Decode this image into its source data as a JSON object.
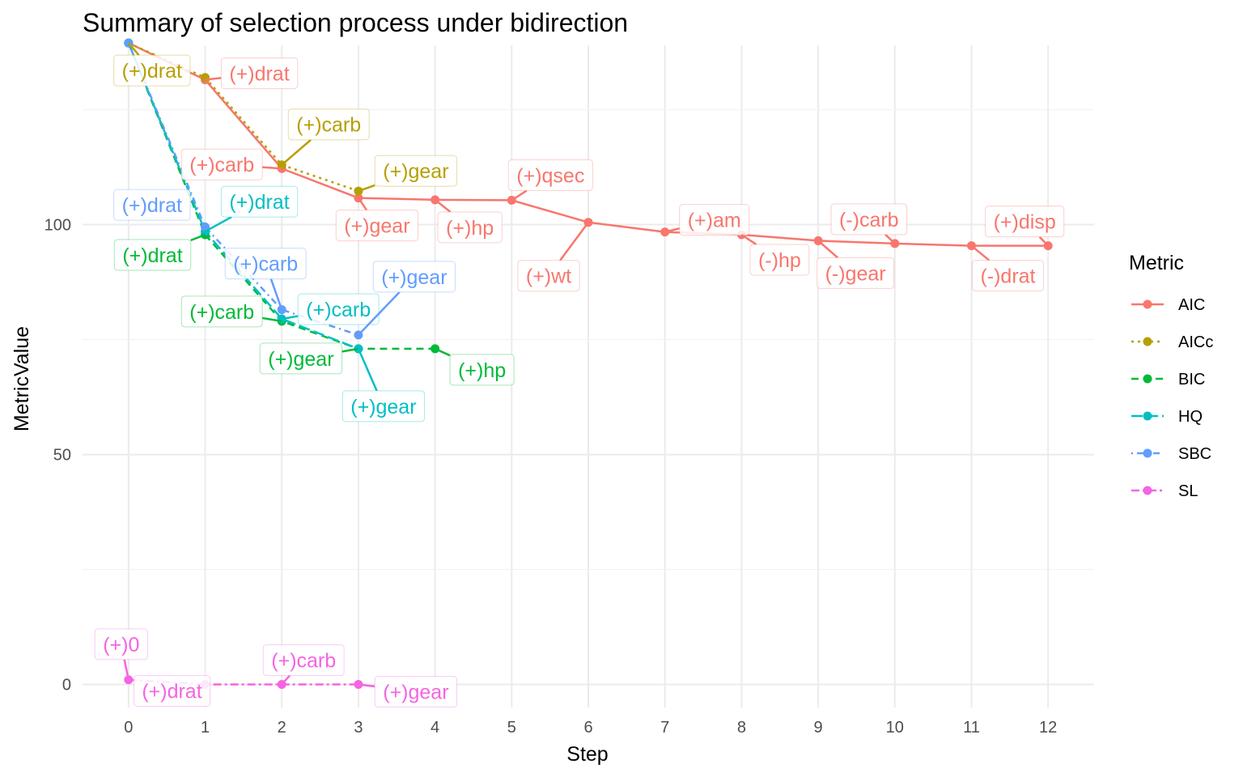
{
  "chart_data": {
    "type": "line",
    "title": "Summary of selection process under bidirection",
    "xlabel": "Step",
    "ylabel": "MetricValue",
    "x_ticks": [
      0,
      1,
      2,
      3,
      4,
      5,
      6,
      7,
      8,
      9,
      10,
      11,
      12
    ],
    "y_ticks": [
      0,
      50,
      100
    ],
    "xlim": [
      -0.6,
      12.6
    ],
    "ylim": [
      -5,
      139
    ],
    "grid": true,
    "legend_title": "Metric",
    "legend_position": "right",
    "series": [
      {
        "name": "AIC",
        "color": "#F8766D",
        "dash": "solid",
        "x": [
          0,
          1,
          2,
          3,
          4,
          5,
          6,
          7,
          8,
          9,
          10,
          11,
          12
        ],
        "y": [
          139.5,
          131.5,
          112.2,
          105.8,
          105.4,
          105.3,
          100.5,
          98.4,
          97.8,
          96.5,
          95.9,
          95.4,
          95.4
        ],
        "labels": [
          "",
          "(+)drat",
          "(+)carb",
          "(+)gear",
          "(+)hp",
          "(+)qsec",
          "(+)wt",
          "(+)am",
          "(-)hp",
          "(-)gear",
          "(-)carb",
          "(-)drat",
          "(+)disp"
        ]
      },
      {
        "name": "AICc",
        "color": "#B79F00",
        "dash": "dotted",
        "x": [
          0,
          1,
          2,
          3
        ],
        "y": [
          139.5,
          132.0,
          113.0,
          107.3
        ],
        "labels": [
          "(+)drat",
          "",
          "(+)carb",
          "(+)gear"
        ]
      },
      {
        "name": "BIC",
        "color": "#00BA38",
        "dash": "dashed",
        "x": [
          0,
          1,
          2,
          3,
          4
        ],
        "y": [
          139.5,
          97.8,
          79.0,
          73.0,
          73.0
        ],
        "labels": [
          "",
          "(+)drat",
          "(+)carb",
          "(+)gear",
          "(+)hp"
        ]
      },
      {
        "name": "HQ",
        "color": "#00BFC4",
        "dash": "longdash",
        "x": [
          0,
          1,
          2,
          3
        ],
        "y": [
          139.5,
          98.5,
          79.5,
          73.0
        ],
        "labels": [
          "",
          "(+)drat",
          "(+)carb",
          "(+)gear"
        ]
      },
      {
        "name": "SBC",
        "color": "#619CFF",
        "dash": "dotdash",
        "x": [
          0,
          1,
          2,
          3
        ],
        "y": [
          139.5,
          99.5,
          81.5,
          76.0
        ],
        "labels": [
          "(+)drat",
          "",
          "(+)carb",
          "(+)gear"
        ]
      },
      {
        "name": "SL",
        "color": "#F564E3",
        "dash": "twodash",
        "x": [
          0,
          1,
          2,
          3
        ],
        "y": [
          1.0,
          0.0,
          0.0,
          0.0
        ],
        "labels": [
          "(+)0",
          "(+)drat",
          "(+)carb",
          "(+)gear"
        ]
      }
    ]
  }
}
